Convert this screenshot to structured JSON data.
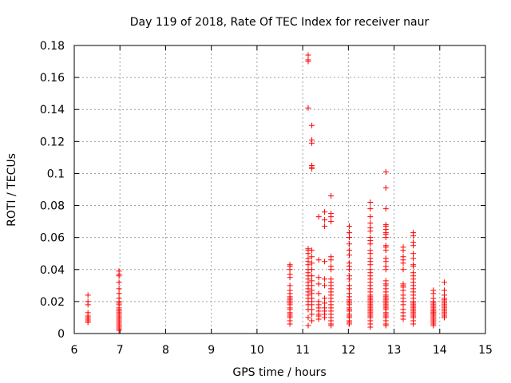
{
  "chart_data": {
    "type": "scatter",
    "title": "Day 119 of 2018, Rate Of TEC Index for receiver naur",
    "xlabel": "GPS time / hours",
    "ylabel": "ROTI / TECUs",
    "xlim": [
      6,
      15
    ],
    "ylim": [
      0,
      0.18
    ],
    "xticks": [
      "6",
      "7",
      "8",
      "9",
      "10",
      "11",
      "12",
      "13",
      "14",
      "15"
    ],
    "yticks": [
      "0",
      "0.02",
      "0.04",
      "0.06",
      "0.08",
      "0.1",
      "0.12",
      "0.14",
      "0.16",
      "0.18"
    ],
    "grid": true,
    "marker": "plus",
    "color": "#ff0000",
    "x": [
      6.3,
      6.3,
      6.3,
      6.3,
      6.3,
      6.3,
      6.3,
      6.3,
      6.3,
      6.3,
      6.98,
      6.98,
      6.98,
      6.98,
      6.98,
      6.98,
      6.98,
      6.98,
      6.98,
      6.98,
      6.98,
      6.98,
      6.98,
      6.98,
      6.98,
      6.98,
      6.98,
      6.98,
      6.98,
      6.98,
      6.98,
      6.98,
      6.98,
      6.98,
      6.98,
      10.72,
      10.72,
      10.72,
      10.72,
      10.72,
      10.72,
      10.72,
      10.72,
      10.72,
      10.72,
      10.72,
      10.72,
      10.72,
      10.72,
      10.72,
      10.72,
      10.72,
      10.72,
      10.72,
      10.72,
      10.72,
      10.72,
      11.12,
      11.12,
      11.12,
      11.12,
      11.12,
      11.12,
      11.12,
      11.12,
      11.12,
      11.12,
      11.12,
      11.12,
      11.12,
      11.12,
      11.12,
      11.12,
      11.12,
      11.12,
      11.12,
      11.12,
      11.12,
      11.12,
      11.12,
      11.12,
      11.12,
      11.2,
      11.2,
      11.2,
      11.2,
      11.2,
      11.2,
      11.2,
      11.2,
      11.2,
      11.2,
      11.2,
      11.2,
      11.2,
      11.2,
      11.2,
      11.2,
      11.2,
      11.2,
      11.2,
      11.2,
      11.2,
      11.35,
      11.35,
      11.35,
      11.35,
      11.35,
      11.35,
      11.35,
      11.35,
      11.35,
      11.35,
      11.35,
      11.35,
      11.48,
      11.48,
      11.48,
      11.48,
      11.48,
      11.48,
      11.48,
      11.48,
      11.48,
      11.48,
      11.48,
      11.48,
      11.62,
      11.62,
      11.62,
      11.62,
      11.62,
      11.62,
      11.62,
      11.62,
      11.62,
      11.62,
      11.62,
      11.62,
      11.62,
      11.62,
      11.62,
      11.62,
      11.62,
      11.62,
      11.62,
      11.62,
      11.62,
      11.62,
      11.62,
      11.62,
      12.02,
      12.02,
      12.02,
      12.02,
      12.02,
      12.02,
      12.02,
      12.02,
      12.02,
      12.02,
      12.02,
      12.02,
      12.02,
      12.02,
      12.02,
      12.02,
      12.02,
      12.02,
      12.02,
      12.02,
      12.02,
      12.02,
      12.02,
      12.02,
      12.02,
      12.02,
      12.02,
      12.02,
      12.48,
      12.48,
      12.48,
      12.48,
      12.48,
      12.48,
      12.48,
      12.48,
      12.48,
      12.48,
      12.48,
      12.48,
      12.48,
      12.48,
      12.48,
      12.48,
      12.48,
      12.48,
      12.48,
      12.48,
      12.48,
      12.48,
      12.48,
      12.48,
      12.48,
      12.48,
      12.48,
      12.48,
      12.48,
      12.48,
      12.48,
      12.48,
      12.48,
      12.48,
      12.48,
      12.48,
      12.48,
      12.48,
      12.48,
      12.48,
      12.82,
      12.82,
      12.82,
      12.82,
      12.82,
      12.82,
      12.82,
      12.82,
      12.82,
      12.82,
      12.82,
      12.82,
      12.82,
      12.82,
      12.82,
      12.82,
      12.82,
      12.82,
      12.82,
      12.82,
      12.82,
      12.82,
      12.82,
      12.82,
      12.82,
      12.82,
      12.82,
      12.82,
      12.82,
      12.82,
      12.82,
      12.82,
      12.82,
      12.82,
      12.82,
      12.82,
      12.82,
      12.82,
      13.2,
      13.2,
      13.2,
      13.2,
      13.2,
      13.2,
      13.2,
      13.2,
      13.2,
      13.2,
      13.2,
      13.2,
      13.2,
      13.2,
      13.2,
      13.2,
      13.2,
      13.2,
      13.42,
      13.42,
      13.42,
      13.42,
      13.42,
      13.42,
      13.42,
      13.42,
      13.42,
      13.42,
      13.42,
      13.42,
      13.42,
      13.42,
      13.42,
      13.42,
      13.42,
      13.42,
      13.42,
      13.42,
      13.42,
      13.42,
      13.42,
      13.42,
      13.42,
      13.42,
      13.42,
      13.42,
      13.42,
      13.42,
      13.86,
      13.86,
      13.86,
      13.86,
      13.86,
      13.86,
      13.86,
      13.86,
      13.86,
      13.86,
      13.86,
      13.86,
      13.86,
      13.86,
      13.86,
      13.86,
      13.86,
      13.86,
      13.86,
      13.86,
      13.86,
      13.86,
      13.86,
      13.86,
      13.86,
      13.86,
      14.1,
      14.1,
      14.1,
      14.1,
      14.1,
      14.1,
      14.1,
      14.1,
      14.1,
      14.1,
      14.1,
      14.1,
      14.1,
      14.1,
      14.1,
      14.1
    ],
    "y": [
      0.024,
      0.02,
      0.018,
      0.013,
      0.011,
      0.01,
      0.009,
      0.008,
      0.007,
      0.011,
      0.039,
      0.037,
      0.036,
      0.032,
      0.028,
      0.025,
      0.022,
      0.02,
      0.018,
      0.016,
      0.015,
      0.014,
      0.013,
      0.012,
      0.011,
      0.01,
      0.009,
      0.008,
      0.007,
      0.006,
      0.005,
      0.004,
      0.003,
      0.002,
      0.019,
      0.043,
      0.042,
      0.04,
      0.037,
      0.035,
      0.03,
      0.027,
      0.025,
      0.023,
      0.022,
      0.021,
      0.02,
      0.019,
      0.018,
      0.016,
      0.015,
      0.013,
      0.012,
      0.011,
      0.01,
      0.008,
      0.006,
      0.174,
      0.171,
      0.17,
      0.141,
      0.053,
      0.052,
      0.05,
      0.047,
      0.045,
      0.043,
      0.04,
      0.038,
      0.036,
      0.034,
      0.032,
      0.03,
      0.028,
      0.026,
      0.024,
      0.022,
      0.02,
      0.018,
      0.015,
      0.01,
      0.005,
      0.13,
      0.121,
      0.119,
      0.105,
      0.104,
      0.103,
      0.052,
      0.048,
      0.044,
      0.04,
      0.036,
      0.033,
      0.03,
      0.027,
      0.025,
      0.022,
      0.02,
      0.018,
      0.015,
      0.012,
      0.008,
      0.073,
      0.046,
      0.035,
      0.031,
      0.025,
      0.02,
      0.018,
      0.016,
      0.014,
      0.012,
      0.011,
      0.009,
      0.076,
      0.071,
      0.067,
      0.045,
      0.034,
      0.03,
      0.022,
      0.019,
      0.016,
      0.014,
      0.012,
      0.01,
      0.086,
      0.075,
      0.073,
      0.07,
      0.048,
      0.046,
      0.042,
      0.04,
      0.034,
      0.032,
      0.03,
      0.028,
      0.026,
      0.024,
      0.022,
      0.02,
      0.018,
      0.016,
      0.014,
      0.012,
      0.01,
      0.008,
      0.006,
      0.005,
      0.067,
      0.063,
      0.06,
      0.056,
      0.052,
      0.049,
      0.044,
      0.042,
      0.04,
      0.036,
      0.034,
      0.03,
      0.028,
      0.025,
      0.023,
      0.021,
      0.02,
      0.019,
      0.018,
      0.016,
      0.015,
      0.014,
      0.012,
      0.011,
      0.01,
      0.008,
      0.007,
      0.006,
      0.082,
      0.078,
      0.073,
      0.069,
      0.066,
      0.064,
      0.06,
      0.058,
      0.056,
      0.052,
      0.05,
      0.047,
      0.045,
      0.043,
      0.04,
      0.038,
      0.036,
      0.034,
      0.032,
      0.03,
      0.028,
      0.026,
      0.024,
      0.023,
      0.022,
      0.021,
      0.02,
      0.019,
      0.018,
      0.017,
      0.016,
      0.015,
      0.014,
      0.013,
      0.012,
      0.011,
      0.01,
      0.008,
      0.006,
      0.004,
      0.101,
      0.091,
      0.078,
      0.068,
      0.067,
      0.065,
      0.063,
      0.062,
      0.06,
      0.055,
      0.054,
      0.052,
      0.047,
      0.045,
      0.042,
      0.04,
      0.033,
      0.031,
      0.03,
      0.028,
      0.026,
      0.024,
      0.023,
      0.022,
      0.021,
      0.02,
      0.019,
      0.018,
      0.017,
      0.016,
      0.015,
      0.013,
      0.012,
      0.011,
      0.01,
      0.008,
      0.006,
      0.005,
      0.054,
      0.052,
      0.048,
      0.046,
      0.044,
      0.04,
      0.031,
      0.03,
      0.029,
      0.027,
      0.024,
      0.022,
      0.02,
      0.018,
      0.015,
      0.013,
      0.011,
      0.009,
      0.063,
      0.061,
      0.057,
      0.055,
      0.05,
      0.047,
      0.043,
      0.042,
      0.038,
      0.036,
      0.034,
      0.032,
      0.03,
      0.028,
      0.026,
      0.024,
      0.022,
      0.02,
      0.019,
      0.018,
      0.017,
      0.016,
      0.015,
      0.014,
      0.013,
      0.012,
      0.011,
      0.01,
      0.008,
      0.006,
      0.027,
      0.025,
      0.022,
      0.02,
      0.019,
      0.018,
      0.017,
      0.016,
      0.015,
      0.014,
      0.014,
      0.013,
      0.013,
      0.012,
      0.012,
      0.011,
      0.011,
      0.01,
      0.01,
      0.009,
      0.009,
      0.008,
      0.008,
      0.007,
      0.006,
      0.005,
      0.032,
      0.027,
      0.024,
      0.022,
      0.021,
      0.02,
      0.019,
      0.018,
      0.017,
      0.016,
      0.015,
      0.014,
      0.013,
      0.012,
      0.011,
      0.01
    ]
  }
}
